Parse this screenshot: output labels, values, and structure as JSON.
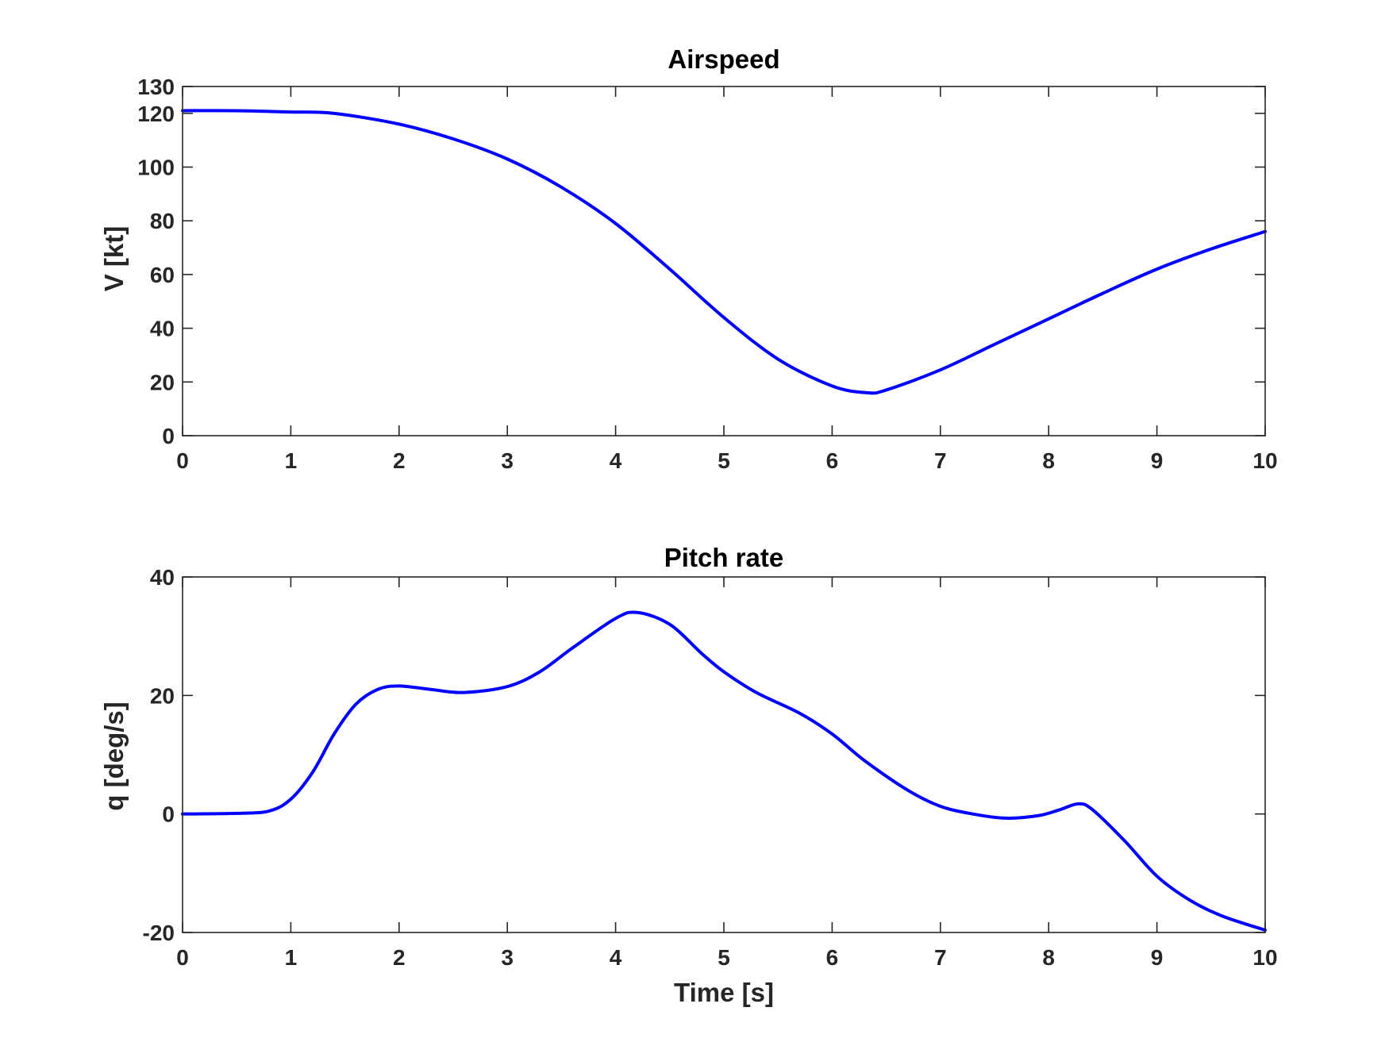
{
  "chart_data": [
    {
      "type": "line",
      "title": "Airspeed",
      "xlabel": "",
      "ylabel": "V [kt]",
      "xlim": [
        0,
        10
      ],
      "ylim": [
        0,
        130
      ],
      "xticks": [
        0,
        1,
        2,
        3,
        4,
        5,
        6,
        7,
        8,
        9,
        10
      ],
      "yticks": [
        0,
        20,
        40,
        60,
        80,
        100,
        120,
        130
      ],
      "grid": false,
      "line_color": "#0000ff",
      "series": [
        {
          "x": [
            0,
            0.5,
            1.0,
            1.4,
            2.0,
            2.5,
            3.0,
            3.5,
            4.0,
            4.5,
            5.0,
            5.5,
            6.0,
            6.32,
            6.5,
            7.0,
            7.5,
            8.0,
            8.5,
            9.0,
            9.5,
            10.0
          ],
          "values": [
            121,
            121,
            120.5,
            120,
            116,
            110.5,
            103,
            92.5,
            79,
            62,
            44,
            28.5,
            18.5,
            16,
            17,
            24.5,
            34,
            43.5,
            53,
            62,
            69.5,
            76
          ]
        }
      ]
    },
    {
      "type": "line",
      "title": "Pitch rate",
      "xlabel": "Time [s]",
      "ylabel": "q [deg/s]",
      "xlim": [
        0,
        10
      ],
      "ylim": [
        -20,
        40
      ],
      "xticks": [
        0,
        1,
        2,
        3,
        4,
        5,
        6,
        7,
        8,
        9,
        10
      ],
      "yticks": [
        -20,
        0,
        20,
        40
      ],
      "grid": false,
      "line_color": "#0000ff",
      "series": [
        {
          "x": [
            0,
            0.5,
            0.8,
            1.0,
            1.2,
            1.4,
            1.6,
            1.8,
            2.0,
            2.3,
            2.6,
            3.0,
            3.3,
            3.6,
            4.0,
            4.2,
            4.5,
            4.8,
            5.0,
            5.3,
            5.7,
            6.0,
            6.3,
            6.7,
            7.0,
            7.3,
            7.6,
            7.9,
            8.1,
            8.27,
            8.4,
            8.7,
            9.0,
            9.3,
            9.6,
            10.0
          ],
          "values": [
            0,
            0.1,
            0.5,
            2.5,
            7,
            13.5,
            18.5,
            21,
            21.6,
            21,
            20.5,
            21.5,
            24,
            28,
            33,
            34,
            32,
            27,
            24,
            20.5,
            17,
            13.5,
            9,
            4,
            1.3,
            0,
            -0.7,
            -0.3,
            0.7,
            1.7,
            0.8,
            -4.5,
            -10.5,
            -14.5,
            -17.2,
            -19.6
          ]
        }
      ]
    }
  ]
}
